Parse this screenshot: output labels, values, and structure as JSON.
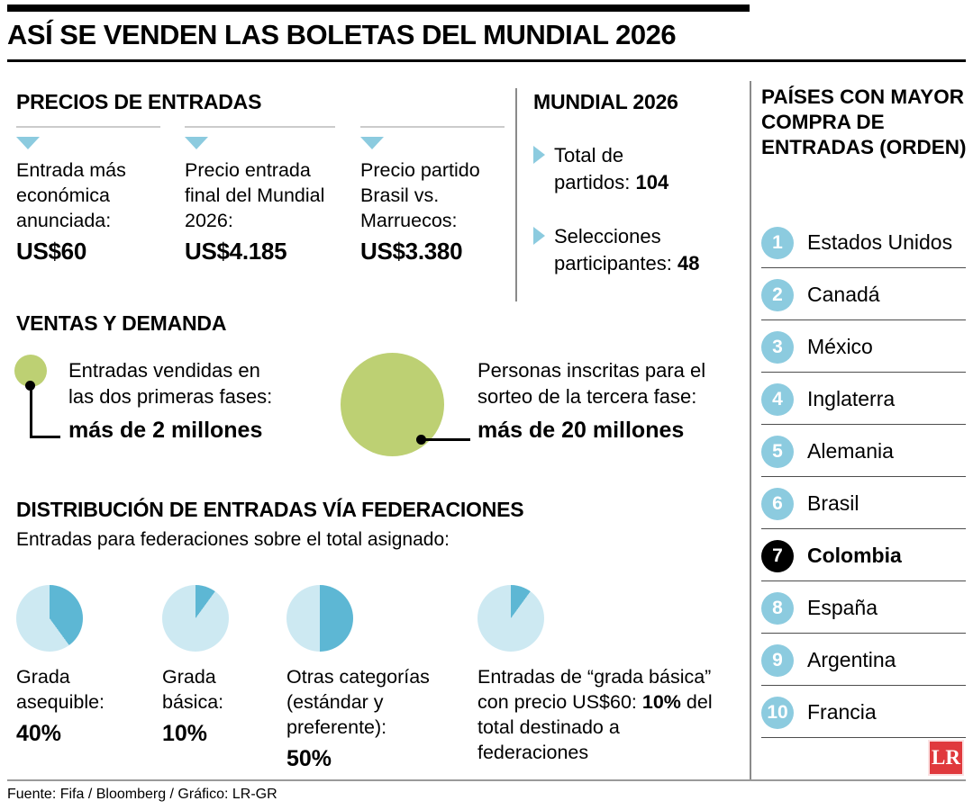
{
  "title": "ASÍ SE VENDEN LAS BOLETAS DEL MUNDIAL 2026",
  "colors": {
    "light_blue": "#8ccbdf",
    "pie_slice": "#5db7d4",
    "pie_rest": "#cde9f2",
    "green": "#bdd073",
    "highlight_black": "#000000",
    "logo_red": "#e0393d"
  },
  "prices": {
    "header": "PRECIOS DE ENTRADAS",
    "items": [
      {
        "label": "Entrada más económica anunciada:",
        "value": "US$60"
      },
      {
        "label": "Precio entrada final del Mundial 2026:",
        "value": "US$4.185"
      },
      {
        "label": "Precio partido Brasil vs. Marruecos:",
        "value": "US$3.380"
      }
    ]
  },
  "mundial": {
    "header": "MUNDIAL 2026",
    "items": [
      {
        "label": "Total de partidos:",
        "value": "104"
      },
      {
        "label": "Selecciones participantes:",
        "value": "48"
      }
    ]
  },
  "ventas": {
    "header": "VENTAS Y DEMANDA",
    "items": [
      {
        "label": "Entradas vendidas en las dos primeras fases:",
        "value": "más de 2 millones"
      },
      {
        "label": "Personas inscritas para el sorteo de la tercera fase:",
        "value": "más de 20 millones"
      }
    ]
  },
  "distribucion": {
    "header": "DISTRIBUCIÓN DE ENTRADAS VÍA FEDERACIONES",
    "subheader": "Entradas para federaciones sobre el total asignado:",
    "items": [
      {
        "label": "Grada asequible:",
        "value": "40%",
        "pct": 40
      },
      {
        "label": "Grada básica:",
        "value": "10%",
        "pct": 10
      },
      {
        "label": "Otras categorías (estándar y preferente):",
        "value": "50%",
        "pct": 50
      },
      {
        "label_pre": "Entradas de “grada básica” con precio US$60:",
        "value": "10%",
        "label_post": "del total destinado a federaciones",
        "pct": 10
      }
    ]
  },
  "paises": {
    "header": "PAÍSES CON MAYOR COMPRA DE ENTRADAS (ORDEN)",
    "items": [
      {
        "rank": "1",
        "name": "Estados Unidos",
        "highlight": false
      },
      {
        "rank": "2",
        "name": "Canadá",
        "highlight": false
      },
      {
        "rank": "3",
        "name": "México",
        "highlight": false
      },
      {
        "rank": "4",
        "name": "Inglaterra",
        "highlight": false
      },
      {
        "rank": "5",
        "name": "Alemania",
        "highlight": false
      },
      {
        "rank": "6",
        "name": "Brasil",
        "highlight": false
      },
      {
        "rank": "7",
        "name": "Colombia",
        "highlight": true
      },
      {
        "rank": "8",
        "name": "España",
        "highlight": false
      },
      {
        "rank": "9",
        "name": "Argentina",
        "highlight": false
      },
      {
        "rank": "10",
        "name": "Francia",
        "highlight": false
      }
    ]
  },
  "footer": {
    "source": "Fuente: Fifa / Bloomberg / Gráfico: LR-GR"
  },
  "logo_text": "LR",
  "chart_data": [
    {
      "type": "pie",
      "title": "Distribución de entradas vía federaciones (entradas para federaciones sobre el total asignado)",
      "categories": [
        "Grada asequible",
        "Grada básica",
        "Otras categorías (estándar y preferente)",
        "Entradas de “grada básica” con precio US$60 (del total destinado a federaciones)"
      ],
      "values": [
        40,
        10,
        50,
        10
      ],
      "note": "Cuatro minigráficos de torta independientes; cada valor es un porcentaje sobre su propio total"
    },
    {
      "type": "bar",
      "rendered_as": "proportional-circles",
      "title": "Ventas y demanda",
      "categories": [
        "Entradas vendidas en las dos primeras fases",
        "Personas inscritas para el sorteo de la tercera fase"
      ],
      "values": [
        2000000,
        20000000
      ],
      "value_labels": [
        "más de 2 millones",
        "más de 20 millones"
      ]
    },
    {
      "type": "table",
      "title": "Países con mayor compra de entradas (orden)",
      "categories": [
        "Estados Unidos",
        "Canadá",
        "México",
        "Inglaterra",
        "Alemania",
        "Brasil",
        "Colombia",
        "España",
        "Argentina",
        "Francia"
      ],
      "values": [
        1,
        2,
        3,
        4,
        5,
        6,
        7,
        8,
        9,
        10
      ]
    }
  ]
}
